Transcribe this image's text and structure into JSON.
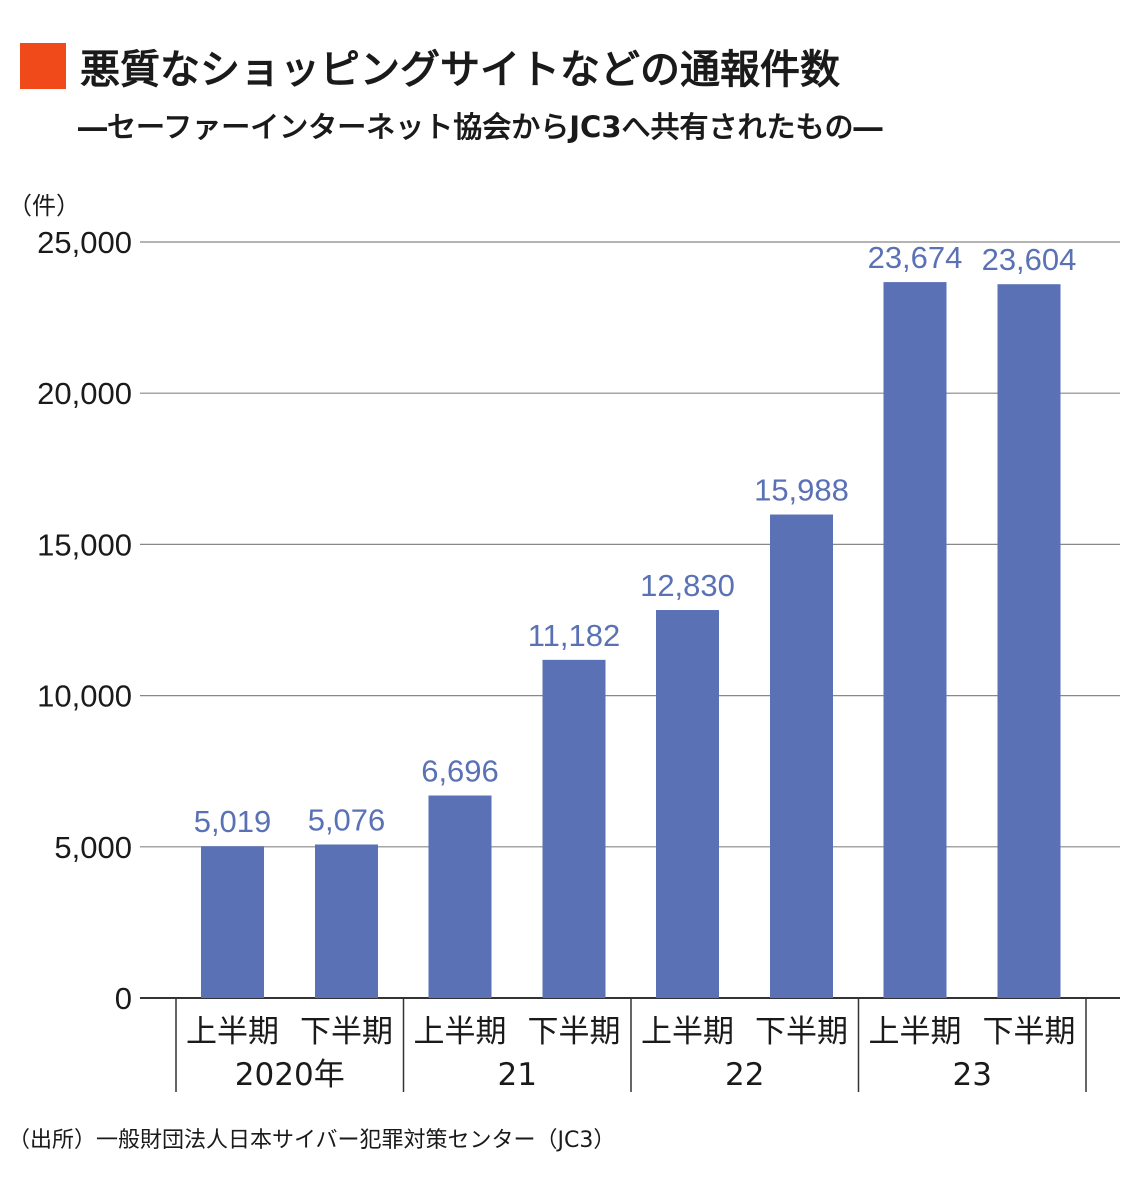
{
  "title": "悪質なショッピングサイトなどの通報件数",
  "subtitle": "―セーファーインターネット協会からJC3へ共有されたもの―",
  "unit_label": "（件）",
  "source": "（出所）一般財団法人日本サイバー犯罪対策センター（JC3）",
  "colors": {
    "bar": "#5a72b5",
    "label": "#5a72b5",
    "accent": "#f04a1a",
    "grid": "#888888"
  },
  "chart_data": {
    "type": "bar",
    "categories": [
      "上半期",
      "下半期",
      "上半期",
      "下半期",
      "上半期",
      "下半期",
      "上半期",
      "下半期"
    ],
    "year_groups": [
      "2020年",
      "21",
      "22",
      "23"
    ],
    "values": [
      5019,
      5076,
      6696,
      11182,
      12830,
      15988,
      23674,
      23604
    ],
    "value_labels": [
      "5,019",
      "5,076",
      "6,696",
      "11,182",
      "12,830",
      "15,988",
      "23,674",
      "23,604"
    ],
    "yticks": [
      0,
      5000,
      10000,
      15000,
      20000,
      25000
    ],
    "ytick_labels": [
      "0",
      "5,000",
      "10,000",
      "15,000",
      "20,000",
      "25,000"
    ],
    "ylim": [
      0,
      25000
    ],
    "grid": true
  }
}
